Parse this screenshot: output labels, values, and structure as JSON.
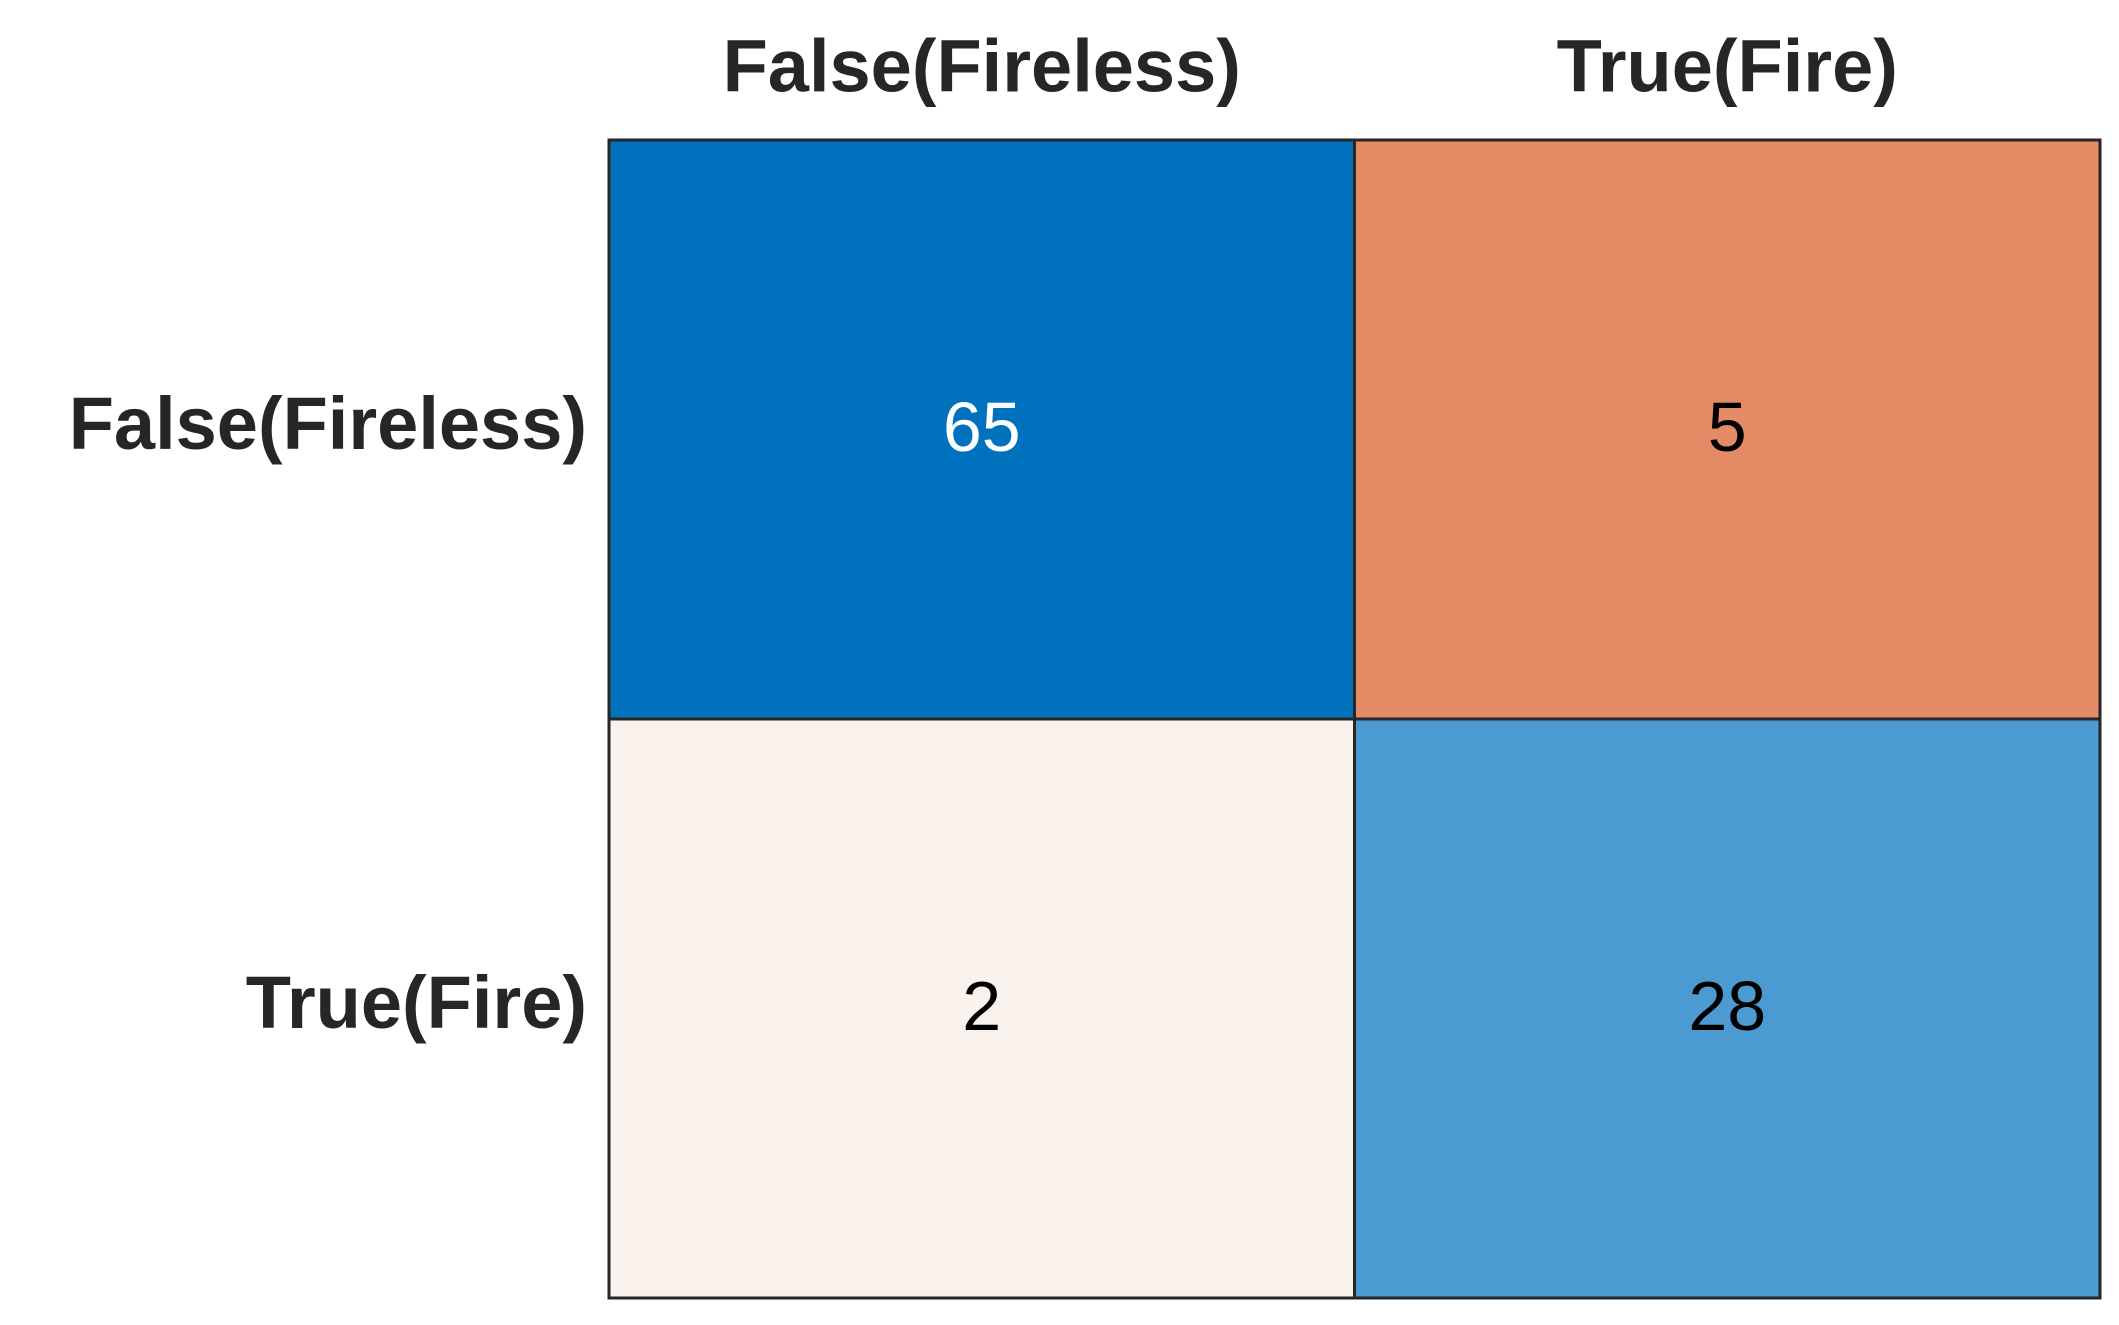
{
  "chart_data": {
    "type": "heatmap",
    "x_categories": [
      "False(Fireless)",
      "True(Fire)"
    ],
    "y_categories": [
      "False(Fireless)",
      "True(Fire)"
    ],
    "values": [
      [
        65,
        5
      ],
      [
        2,
        28
      ]
    ],
    "colors": [
      [
        "#0072bd",
        "#e48a64"
      ],
      [
        "#f9f1ec",
        "#4b9ad1"
      ]
    ],
    "label_colors": [
      [
        "#ffffff",
        "#000000"
      ],
      [
        "#000000",
        "#000000"
      ]
    ]
  }
}
